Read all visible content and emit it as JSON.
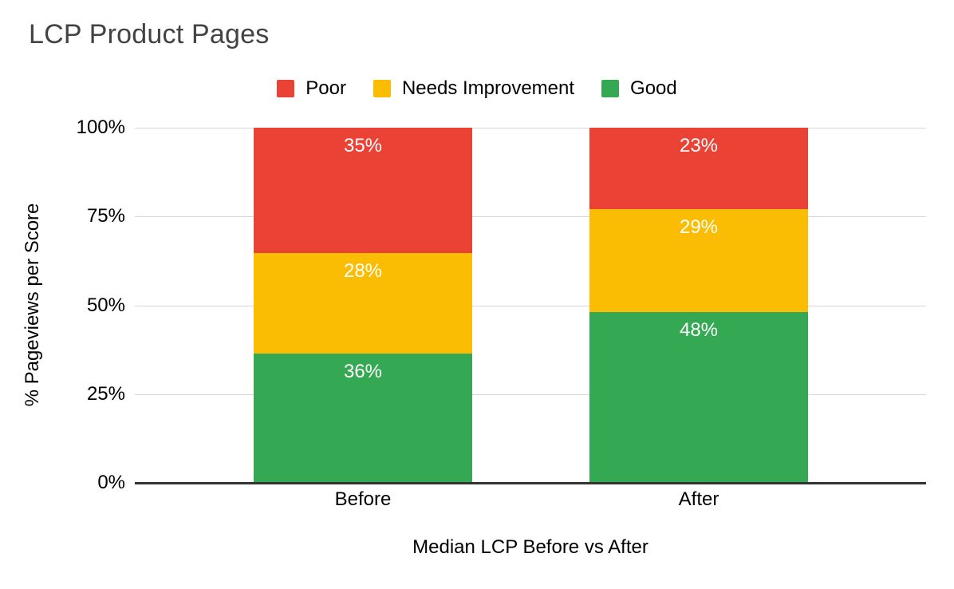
{
  "title": "LCP Product Pages",
  "legend": [
    {
      "label": "Poor",
      "color": "#EA4335"
    },
    {
      "label": "Needs Improvement",
      "color": "#FBBC04"
    },
    {
      "label": "Good",
      "color": "#34A853"
    }
  ],
  "colors": {
    "poor": "#EA4335",
    "needs_improvement": "#FBBC04",
    "good": "#34A853",
    "title_text": "#434343",
    "axis_text": "#000000",
    "gridline": "#d6d6d6",
    "baseline": "#333333",
    "data_label_text": "#ffffff"
  },
  "chart_data": {
    "type": "bar",
    "stacked": true,
    "title": "LCP Product Pages",
    "xlabel": "Median LCP Before vs After",
    "ylabel": "% Pageviews per Score",
    "categories": [
      "Before",
      "After"
    ],
    "series": [
      {
        "name": "Good",
        "color": "#34A853",
        "values": [
          36,
          48
        ]
      },
      {
        "name": "Needs Improvement",
        "color": "#FBBC04",
        "values": [
          28,
          29
        ]
      },
      {
        "name": "Poor",
        "color": "#EA4335",
        "values": [
          35,
          23
        ]
      }
    ],
    "data_labels": [
      "36%",
      "28%",
      "35%",
      "48%",
      "29%",
      "23%"
    ],
    "label_format": "{value}%",
    "y_ticks": [
      "100%",
      "75%",
      "50%",
      "25%",
      "0%"
    ],
    "ylim": [
      0,
      100
    ],
    "grid": true,
    "legend_position": "top"
  }
}
